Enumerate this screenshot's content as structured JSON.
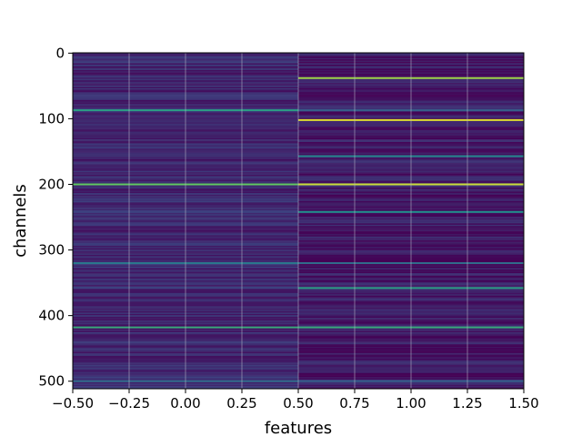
{
  "chart_data": {
    "type": "heatmap",
    "title": "",
    "xlabel": "features",
    "ylabel": "channels",
    "xlim": [
      -0.5,
      1.5
    ],
    "ylim": [
      511.5,
      -0.5
    ],
    "y_inverted": true,
    "grid": true,
    "colormap": "viridis",
    "columns": [
      0,
      1
    ],
    "rows": 512,
    "x_ticks": [
      -0.5,
      -0.25,
      0.0,
      0.25,
      0.5,
      0.75,
      1.0,
      1.25,
      1.5
    ],
    "x_tick_labels": [
      "−0.50",
      "−0.25",
      "0.00",
      "0.25",
      "0.50",
      "0.75",
      "1.00",
      "1.25",
      "1.50"
    ],
    "y_ticks": [
      0,
      100,
      200,
      300,
      400,
      500
    ],
    "y_tick_labels": [
      "0",
      "100",
      "200",
      "300",
      "400",
      "500"
    ],
    "base_level": [
      0.1,
      0.06
    ],
    "highlighted_rows": [
      {
        "channel": 38,
        "values": [
          0.1,
          0.85
        ]
      },
      {
        "channel": 87,
        "values": [
          0.55,
          0.3
        ]
      },
      {
        "channel": 102,
        "values": [
          0.12,
          0.95
        ]
      },
      {
        "channel": 157,
        "values": [
          0.15,
          0.45
        ]
      },
      {
        "channel": 200,
        "values": [
          0.75,
          0.92
        ]
      },
      {
        "channel": 242,
        "values": [
          0.2,
          0.5
        ]
      },
      {
        "channel": 320,
        "values": [
          0.4,
          0.35
        ]
      },
      {
        "channel": 358,
        "values": [
          0.2,
          0.55
        ]
      },
      {
        "channel": 418,
        "values": [
          0.6,
          0.6
        ]
      },
      {
        "channel": 500,
        "values": [
          0.35,
          0.3
        ]
      }
    ]
  }
}
